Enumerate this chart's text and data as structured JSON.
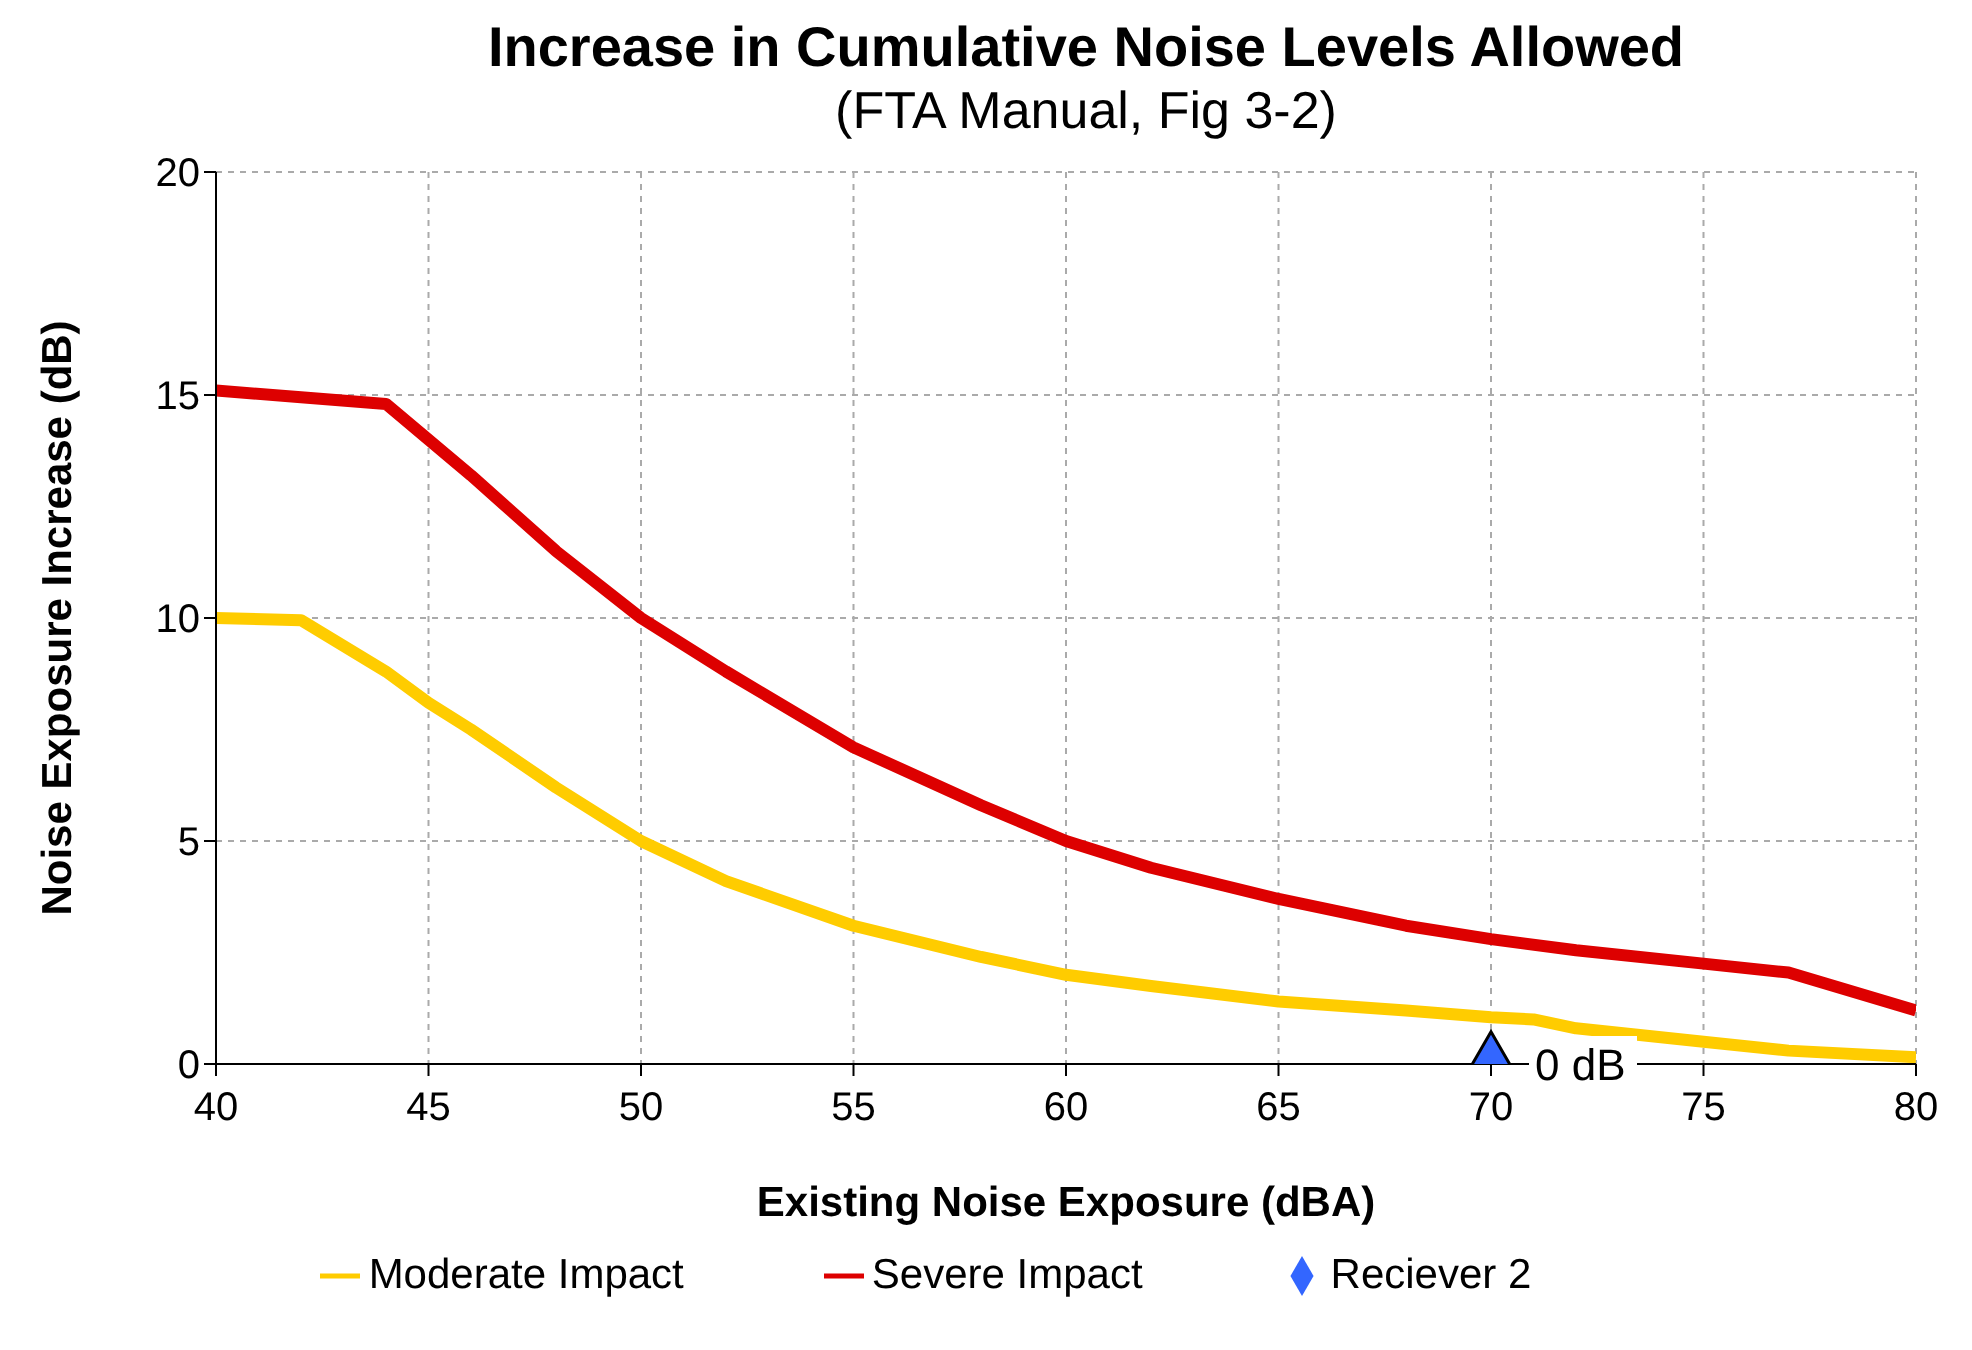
{
  "chart_data": {
    "type": "line",
    "title": "Increase in Cumulative Noise Levels Allowed",
    "subtitle": "(FTA Manual, Fig 3-2)",
    "xlabel": "Existing Noise Exposure (dBA)",
    "ylabel": "Noise Exposure Increase (dB)",
    "xlim": [
      40,
      80
    ],
    "xticks": [
      40,
      45,
      50,
      55,
      60,
      65,
      70,
      75,
      80
    ],
    "ylim": [
      0,
      20
    ],
    "yticks": [
      0,
      5,
      10,
      15,
      20
    ],
    "grid": true,
    "legend": "bottom",
    "marker": "none",
    "line_style": "solid",
    "series": [
      {
        "name": "Moderate Impact",
        "color": "#ffcc00",
        "x": [
          40,
          42,
          44,
          45,
          46,
          48,
          50,
          52,
          55,
          58,
          60,
          62,
          65,
          68,
          70,
          71,
          72,
          75,
          77,
          80
        ],
        "values": [
          10,
          9.95,
          8.8,
          8.1,
          7.5,
          6.2,
          5.0,
          4.1,
          3.1,
          2.4,
          2.0,
          1.75,
          1.4,
          1.2,
          1.05,
          1.0,
          0.8,
          0.5,
          0.3,
          0.15
        ]
      },
      {
        "name": "Severe Impact",
        "color": "#dd0000",
        "x": [
          40,
          42,
          44,
          45,
          46,
          48,
          50,
          52,
          55,
          58,
          60,
          62,
          65,
          68,
          70,
          72,
          75,
          77,
          80
        ],
        "values": [
          15.1,
          14.95,
          14.8,
          14.0,
          13.2,
          11.5,
          10.0,
          8.8,
          7.1,
          5.8,
          5.0,
          4.4,
          3.7,
          3.1,
          2.8,
          2.55,
          2.25,
          2.05,
          1.2
        ]
      },
      {
        "name": "Reciever 2",
        "type": "scatter",
        "marker": "diamond",
        "color": "#3366ff",
        "x": [
          70
        ],
        "values": [
          0
        ]
      }
    ],
    "annotations": [
      {
        "text": "0 dB",
        "x": 70,
        "y": 0
      }
    ]
  }
}
